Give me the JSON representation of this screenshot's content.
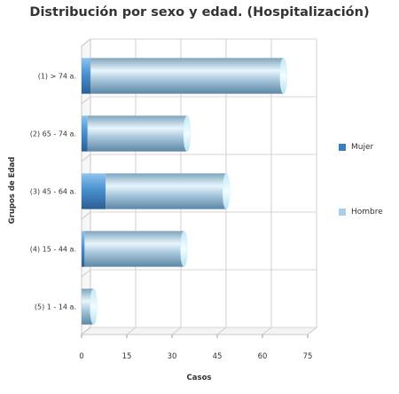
{
  "chart_data": {
    "type": "bar",
    "orientation": "horizontal",
    "stacked": true,
    "title": "Distribución por sexo y edad. (Hospitalización)",
    "xlabel": "Casos",
    "ylabel": "Grupos de Edad",
    "categories": [
      "(1) > 74 a.",
      "(2) 65 - 74 a.",
      "(3) 45 - 64 a.",
      "(4) 15 - 44 a.",
      "(5) 1 - 14 a."
    ],
    "series": [
      {
        "name": "Mujer",
        "values": [
          3,
          2,
          8,
          1,
          0
        ],
        "color": "#3a7fbf"
      },
      {
        "name": "Hombre",
        "values": [
          64,
          33,
          40,
          33,
          4
        ],
        "color": "#a8cfe8"
      }
    ],
    "xlim": [
      0,
      75
    ],
    "xticks": [
      "0",
      "15",
      "30",
      "45",
      "60",
      "75"
    ],
    "grid": true,
    "legend": "right"
  }
}
